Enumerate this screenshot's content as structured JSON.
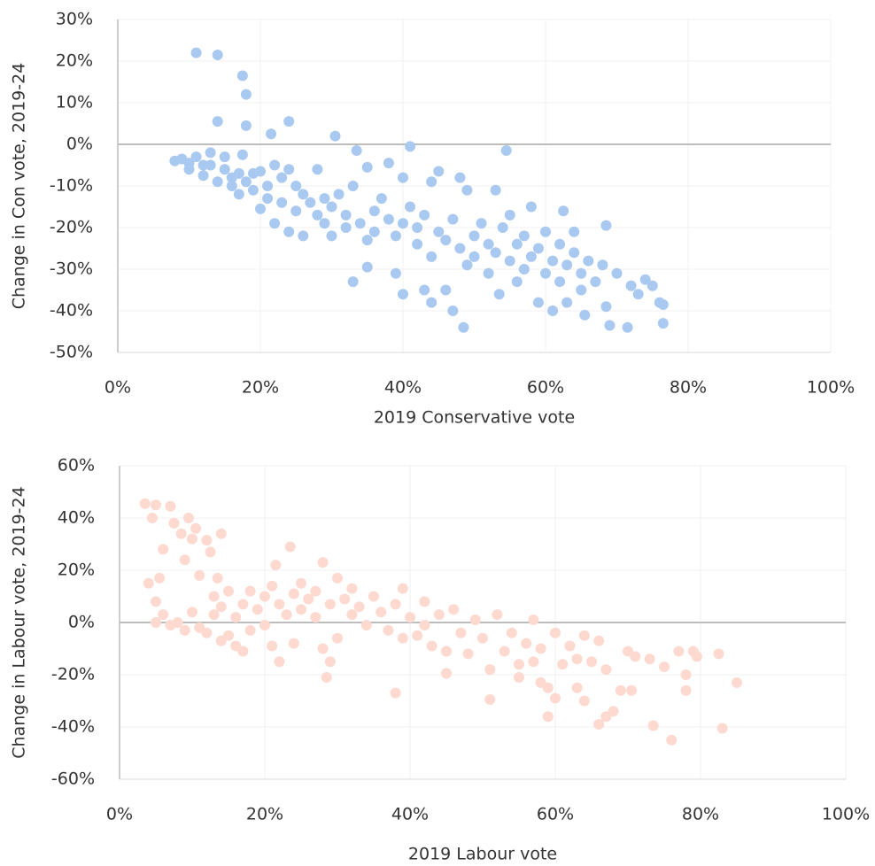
{
  "chart_data": [
    {
      "type": "scatter",
      "xlabel": "2019 Conservative vote",
      "ylabel": "Change in Con vote, 2019-24",
      "color": "#a9c9f0",
      "xlim": [
        0,
        100
      ],
      "xticks": [
        {
          "value": 0,
          "label": "0%"
        },
        {
          "value": 20,
          "label": "20%"
        },
        {
          "value": 40,
          "label": "40%"
        },
        {
          "value": 60,
          "label": "60%"
        },
        {
          "value": 80,
          "label": "80%"
        },
        {
          "value": 100,
          "label": "100%"
        }
      ],
      "ylim": [
        -50,
        30
      ],
      "yticks": [
        {
          "value": -50,
          "label": "-50%"
        },
        {
          "value": -40,
          "label": "-40%"
        },
        {
          "value": -30,
          "label": "-30%"
        },
        {
          "value": -20,
          "label": "-20%"
        },
        {
          "value": -10,
          "label": "-10%"
        },
        {
          "value": 0,
          "label": "0%"
        },
        {
          "value": 10,
          "label": "10%"
        },
        {
          "value": 20,
          "label": "20%"
        },
        {
          "value": 30,
          "label": "30%"
        }
      ],
      "grid": true,
      "x": [
        8,
        9,
        10,
        10,
        11,
        11,
        12,
        12,
        13,
        13,
        14,
        14,
        14,
        15,
        15,
        16,
        16,
        17,
        17,
        17.5,
        17.5,
        18,
        18,
        18,
        19,
        19,
        20,
        20,
        21,
        21,
        21.5,
        22,
        22,
        23,
        23,
        24,
        24,
        24,
        25,
        25,
        26,
        26,
        27,
        28,
        28,
        29,
        29,
        30,
        30,
        30.5,
        31,
        32,
        32,
        33,
        33,
        33.5,
        34,
        35,
        35,
        35,
        36,
        36,
        37,
        38,
        38,
        39,
        39,
        40,
        40,
        40,
        41,
        41,
        42,
        42,
        43,
        43,
        44,
        44,
        44,
        45,
        45,
        46,
        46,
        47,
        47,
        48,
        48,
        48.5,
        49,
        49,
        50,
        50,
        51,
        52,
        52,
        53,
        53,
        53.5,
        54,
        54.5,
        55,
        55,
        56,
        56,
        57,
        57,
        58,
        58,
        59,
        59,
        60,
        60,
        61,
        61,
        62,
        62,
        62.5,
        63,
        63,
        64,
        64,
        65,
        65,
        65.5,
        66,
        67,
        68,
        68.5,
        68.5,
        69,
        70,
        71.5,
        72,
        73,
        74,
        75,
        76,
        76.5,
        76.5
      ],
      "values": [
        -4,
        -3.5,
        -4.5,
        -6,
        -3,
        22,
        -5,
        -7.5,
        -2,
        -5,
        5.5,
        21.5,
        -9,
        -6,
        -3,
        -8,
        -10,
        -7,
        -12,
        16.5,
        -2.5,
        12,
        4.5,
        -9,
        -7,
        -11,
        -15.5,
        -6.5,
        -10,
        -13,
        2.5,
        -5,
        -19,
        -8,
        -14,
        5.5,
        -6,
        -21,
        -10,
        -16,
        -12,
        -22,
        -14,
        -17,
        -6,
        -13,
        -19,
        -15,
        -22,
        2,
        -12,
        -17,
        -20,
        -33,
        -10,
        -1.5,
        -19,
        -23,
        -5.5,
        -29.5,
        -16,
        -21,
        -13,
        -18,
        -4.5,
        -31,
        -22,
        -36,
        -19,
        -8,
        -0.5,
        -15,
        -24,
        -20,
        -17,
        -35,
        -38,
        -9,
        -27,
        -21,
        -6.5,
        -23,
        -35,
        -40,
        -18,
        -25,
        -8,
        -44,
        -29,
        -11,
        -22,
        -27,
        -19,
        -24,
        -31,
        -11,
        -26,
        -36,
        -20,
        -1.5,
        -28,
        -17,
        -24,
        -33,
        -22,
        -30,
        -15,
        -27,
        -38,
        -25,
        -31,
        -21,
        -28,
        -40,
        -33,
        -24,
        -16,
        -38,
        -29,
        -26,
        -21,
        -35,
        -31,
        -41,
        -28,
        -33,
        -29,
        -19.5,
        -39,
        -43.5,
        -31,
        -44,
        -34,
        -36,
        -32.5,
        -34,
        -38,
        -43,
        -38.5
      ]
    },
    {
      "type": "scatter",
      "xlabel": "2019 Labour vote",
      "ylabel": "Change in Labour vote, 2019-24",
      "color": "#fdd9d0",
      "xlim": [
        0,
        100
      ],
      "xticks": [
        {
          "value": 0,
          "label": "0%"
        },
        {
          "value": 20,
          "label": "20%"
        },
        {
          "value": 40,
          "label": "40%"
        },
        {
          "value": 60,
          "label": "60%"
        },
        {
          "value": 80,
          "label": "80%"
        },
        {
          "value": 100,
          "label": "100%"
        }
      ],
      "ylim": [
        -60,
        60
      ],
      "yticks": [
        {
          "value": -60,
          "label": "-60%"
        },
        {
          "value": -40,
          "label": "-40%"
        },
        {
          "value": -20,
          "label": "-20%"
        },
        {
          "value": 0,
          "label": "0%"
        },
        {
          "value": 20,
          "label": "20%"
        },
        {
          "value": 40,
          "label": "40%"
        },
        {
          "value": 60,
          "label": "60%"
        }
      ],
      "grid": true,
      "x": [
        3.5,
        4,
        4.5,
        5,
        5,
        5,
        5.5,
        6,
        6,
        7,
        7,
        7.5,
        8,
        8.5,
        9,
        9,
        9.5,
        10,
        10,
        10.5,
        11,
        11,
        12,
        12,
        12.5,
        13,
        13,
        13.5,
        14,
        14,
        14,
        15,
        15,
        16,
        16,
        17,
        17,
        18,
        18,
        19,
        20,
        20,
        21,
        21,
        21.5,
        22,
        22,
        23,
        23.5,
        24,
        24,
        25,
        25,
        26,
        27,
        27,
        28,
        28,
        28.5,
        29,
        29,
        30,
        30,
        31,
        32,
        32,
        33,
        34,
        35,
        36,
        37,
        38,
        38,
        39,
        39,
        40,
        41,
        42,
        42,
        43,
        44,
        45,
        45,
        46,
        47,
        48,
        49,
        50,
        51,
        51,
        52,
        53,
        54,
        55,
        55,
        56,
        57,
        57,
        58,
        58,
        59,
        59,
        60,
        60,
        61,
        62,
        63,
        63,
        64,
        64,
        65,
        66,
        66,
        67,
        67,
        68,
        69,
        70,
        70.5,
        71,
        73,
        73.5,
        75,
        76,
        77,
        78,
        78,
        79,
        79.5,
        82.5,
        83,
        85
      ],
      "values": [
        45.5,
        15,
        40,
        45,
        0,
        8,
        17,
        28,
        3,
        44.5,
        -1,
        38,
        0,
        34,
        -3,
        24,
        40,
        32,
        4,
        36,
        18,
        -2,
        31.5,
        -4,
        27,
        3,
        10,
        17,
        34,
        -7,
        6,
        -5,
        12,
        2,
        -9,
        7,
        -11,
        12,
        -3,
        5,
        10,
        -1,
        14,
        -9,
        22,
        7,
        -15,
        3,
        29,
        11,
        -8,
        5,
        15,
        9,
        2,
        12,
        23,
        -10,
        -21,
        -15,
        7,
        17,
        -6,
        9,
        13,
        3,
        6,
        -1,
        10,
        4,
        -3,
        7,
        -27,
        13,
        -6,
        2,
        -5,
        8,
        -1,
        -9,
        3,
        -11,
        -19.5,
        5,
        -4,
        -12,
        1,
        -6,
        -18,
        -29.5,
        3,
        -11,
        -4,
        -16,
        -21,
        -8,
        1,
        -15,
        -23,
        -10,
        -25,
        -36,
        -4,
        -29,
        -16,
        -9,
        -25,
        -14,
        -30,
        -5,
        -15,
        -39,
        -7,
        -36,
        -18,
        -34,
        -26,
        -11,
        -26,
        -13,
        -14,
        -39.5,
        -17,
        -45,
        -11,
        -20,
        -26,
        -11,
        -13,
        -12,
        -40.5,
        -23
      ]
    }
  ]
}
